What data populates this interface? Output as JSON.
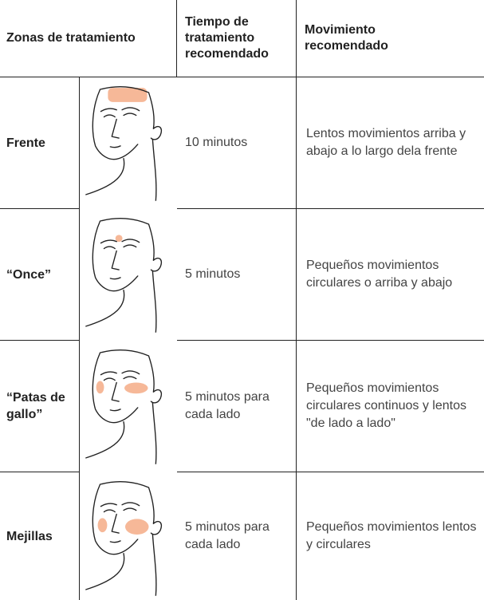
{
  "table": {
    "header": [
      "Zonas de tratamiento",
      "Tiempo de tratamiento recomendado",
      "Movimiento recomendado"
    ],
    "rows": [
      [
        "Frente",
        "10 minutos",
        "Lentos movimientos arriba y abajo a lo largo dela frente"
      ],
      [
        "“Once”",
        "5 minutos",
        "Pequeños movimientos circulares o arriba y abajo"
      ],
      [
        "“Patas de gallo”",
        "5 minutos para cada lado",
        "Pequeños movimientos circulares continuos y lentos \"de lado a lado\""
      ],
      [
        "Mejillas",
        "5 minutos para cada lado",
        "Pequeños movimientos lentos y circulares"
      ]
    ]
  }
}
